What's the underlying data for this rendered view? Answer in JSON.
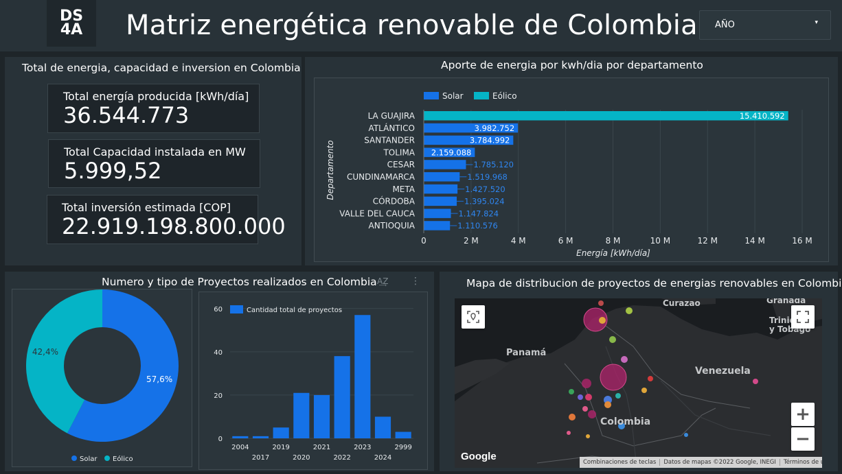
{
  "header": {
    "logo_line1": "DS",
    "logo_line2": "4A",
    "title": "Matriz energética renovable de Colombia",
    "year_filter": {
      "label": "AÑO",
      "caret": "▾"
    }
  },
  "kpis": {
    "title": "Total de energia, capacidad e inversion en Colombia",
    "items": [
      {
        "label": "Total energía producida [kWh/día]",
        "value": "36.544.773"
      },
      {
        "label": "Total Capacidad instalada en MW",
        "value": "5.999,52"
      },
      {
        "label": "Total inversión estimada [COP]",
        "value": "22.919.198.800.000"
      }
    ]
  },
  "colors": {
    "solar": "#1572e8",
    "eolico": "#05b4c6",
    "map_bubble": "#b0236b"
  },
  "hbar": {
    "title": "Aporte de energia por kwh/dia por departamento",
    "chart_data": {
      "type": "bar",
      "orientation": "horizontal",
      "legend": [
        {
          "name": "Solar",
          "color": "#1572e8"
        },
        {
          "name": "Eólico",
          "color": "#05b4c6"
        }
      ],
      "categories": [
        "LA GUAJIRA",
        "ATLÁNTICO",
        "SANTANDER",
        "TOLIMA",
        "CESAR",
        "CUNDINAMARCA",
        "META",
        "CÓRDOBA",
        "VALLE DEL CAUCA",
        "ANTIOQUIA"
      ],
      "values": [
        15410592,
        3982752,
        3784992,
        2159088,
        1785120,
        1519968,
        1427520,
        1395024,
        1147824,
        1110576
      ],
      "value_labels": [
        "15.410.592",
        "3.982.752",
        "3.784.992",
        "2.159.088",
        "1.785.120",
        "1.519.968",
        "1.427.520",
        "1.395.024",
        "1.147.824",
        "1.110.576"
      ],
      "series_of_bar": [
        "Eólico",
        "Solar",
        "Solar",
        "Solar",
        "Solar",
        "Solar",
        "Solar",
        "Solar",
        "Solar",
        "Solar"
      ],
      "xticks": [
        0,
        2000000,
        4000000,
        6000000,
        8000000,
        10000000,
        12000000,
        14000000,
        16000000
      ],
      "xtick_labels": [
        "0",
        "2 M",
        "4 M",
        "6 M",
        "8 M",
        "10 M",
        "12 M",
        "14 M",
        "16 M"
      ],
      "xlim": [
        0,
        16000000
      ],
      "xlabel": "Energía [kWh/día]",
      "ylabel": "Departamento"
    }
  },
  "projects": {
    "title": "Numero y tipo de Proyectos realizados en Colombia",
    "toolbar_sort": "A͢Z",
    "toolbar_more": "⋮",
    "pie": {
      "chart_data": {
        "type": "pie",
        "slices": [
          {
            "name": "Solar",
            "value": 57.6,
            "label": "57,6%",
            "color": "#1572e8"
          },
          {
            "name": "Eólico",
            "value": 42.4,
            "label": "42,4%",
            "color": "#05b4c6"
          }
        ]
      }
    },
    "bars": {
      "chart_data": {
        "type": "bar",
        "legend": "Cantidad total de proyectos",
        "categories": [
          "2004",
          "2017",
          "2019",
          "2020",
          "2021",
          "2022",
          "2023",
          "2024",
          "2999"
        ],
        "values": [
          1,
          1,
          5,
          21,
          20,
          38,
          57,
          10,
          3
        ],
        "yticks": [
          0,
          20,
          40,
          60
        ],
        "ylim": [
          0,
          65
        ]
      }
    }
  },
  "map": {
    "title": "Mapa de distribucion de proyectos de energias renovables en Colombia",
    "labels": [
      {
        "text": "Curazao",
        "size": 12
      },
      {
        "text": "Granada",
        "size": 12
      },
      {
        "text": "Trinidad",
        "size": 12
      },
      {
        "text": "y Tobago",
        "size": 12
      },
      {
        "text": "Panamá",
        "size": 13
      },
      {
        "text": "Venezuela",
        "size": 14
      },
      {
        "text": "Colombia",
        "size": 14
      }
    ],
    "google": "Google",
    "footer": [
      "Combinaciones de teclas",
      "Datos de mapas ©2022 Google, INEGI",
      "Términos de uso"
    ],
    "zoom_in": "+",
    "zoom_out": "−"
  }
}
